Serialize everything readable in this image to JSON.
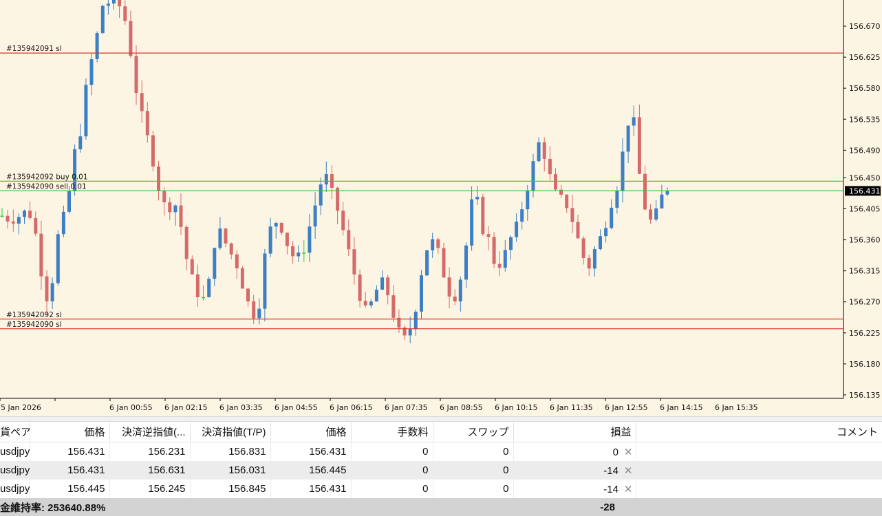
{
  "chart": {
    "price_labels": [
      "156.670",
      "156.625",
      "156.580",
      "156.535",
      "156.490",
      "156.450",
      "156.405",
      "156.360",
      "156.315",
      "156.270",
      "156.225",
      "156.180",
      "156.135"
    ],
    "time_labels": [
      "5 Jan 2026",
      "6 Jan 00:55",
      "6 Jan 02:15",
      "6 Jan 03:35",
      "6 Jan 04:55",
      "6 Jan 06:15",
      "6 Jan 07:35",
      "6 Jan 08:55",
      "6 Jan 10:15",
      "6 Jan 11:35",
      "6 Jan 12:55",
      "6 Jan 14:15",
      "6 Jan 15:35"
    ],
    "current_price": "156.431",
    "level_lines": [
      {
        "label": "#135942091 sl",
        "price": 156.631,
        "color": "#e03030"
      },
      {
        "label": "#135942092 buy 0.01",
        "price": 156.445,
        "color": "#3cc43c"
      },
      {
        "label": "#135942090 sell 0.01",
        "price": 156.431,
        "color": "#3cc43c"
      },
      {
        "label": "#135942092 sl",
        "price": 156.245,
        "color": "#e03030"
      },
      {
        "label": "#135942090 sl",
        "price": 156.231,
        "color": "#e03030"
      }
    ],
    "colors": {
      "background": "#fdf5e3",
      "bull": "#3d7fc4",
      "bear": "#d46a6a",
      "neutral": "#2ecc2e",
      "current_tag": "#000000"
    }
  },
  "chart_data": {
    "type": "candlestick",
    "symbol": "usdjpy",
    "ylim": [
      156.135,
      156.705
    ],
    "x": [
      "5 Jan 2026",
      "6 Jan 00:55",
      "6 Jan 02:15",
      "6 Jan 03:35",
      "6 Jan 04:55",
      "6 Jan 06:15",
      "6 Jan 07:35",
      "6 Jan 08:55",
      "6 Jan 10:15",
      "6 Jan 11:35",
      "6 Jan 12:55",
      "6 Jan 14:15",
      "6 Jan 15:35"
    ],
    "close_path": [
      156.395,
      156.39,
      156.392,
      156.4,
      156.396,
      156.355,
      156.27,
      156.3,
      156.38,
      156.4,
      156.48,
      156.52,
      156.6,
      156.64,
      156.7,
      156.705,
      156.705,
      156.69,
      156.63,
      156.56,
      156.52,
      156.48,
      156.43,
      156.4,
      156.42,
      156.38,
      156.32,
      156.29,
      156.27,
      156.3,
      156.38,
      156.36,
      156.34,
      156.32,
      156.28,
      156.25,
      156.27,
      156.36,
      156.39,
      156.38,
      156.35,
      156.33,
      156.34,
      156.38,
      156.42,
      156.46,
      156.43,
      156.4,
      156.36,
      156.32,
      156.28,
      156.25,
      156.28,
      156.3,
      156.28,
      156.24,
      156.21,
      156.23,
      156.27,
      156.34,
      156.36,
      156.34,
      156.3,
      156.27,
      156.3,
      156.36,
      156.44,
      156.38,
      156.36,
      156.32,
      156.33,
      156.36,
      156.38,
      156.42,
      156.46,
      156.5,
      156.48,
      156.43,
      156.42,
      156.41,
      156.38,
      156.34,
      156.32,
      156.35,
      156.37,
      156.41,
      156.44,
      156.5,
      156.56,
      156.46,
      156.4,
      156.38,
      156.42,
      156.431
    ]
  },
  "table": {
    "headers": [
      "貨ペア",
      "価格",
      "決済逆指値(...",
      "決済指値(T/P)",
      "価格",
      "手数料",
      "スワップ",
      "損益",
      "コメント"
    ],
    "rows": [
      {
        "symbol": "usdjpy",
        "open_price": "156.431",
        "sl": "156.231",
        "tp": "156.831",
        "price": "156.431",
        "commission": "0",
        "swap": "0",
        "profit": "0"
      },
      {
        "symbol": "usdjpy",
        "open_price": "156.431",
        "sl": "156.631",
        "tp": "156.031",
        "price": "156.445",
        "commission": "0",
        "swap": "0",
        "profit": "-14"
      },
      {
        "symbol": "usdjpy",
        "open_price": "156.445",
        "sl": "156.245",
        "tp": "156.845",
        "price": "156.431",
        "commission": "0",
        "swap": "0",
        "profit": "-14"
      }
    ],
    "close_glyph": "✕",
    "summary": {
      "margin_level": "金維持率: 253640.88%",
      "total_profit": "-28"
    }
  }
}
